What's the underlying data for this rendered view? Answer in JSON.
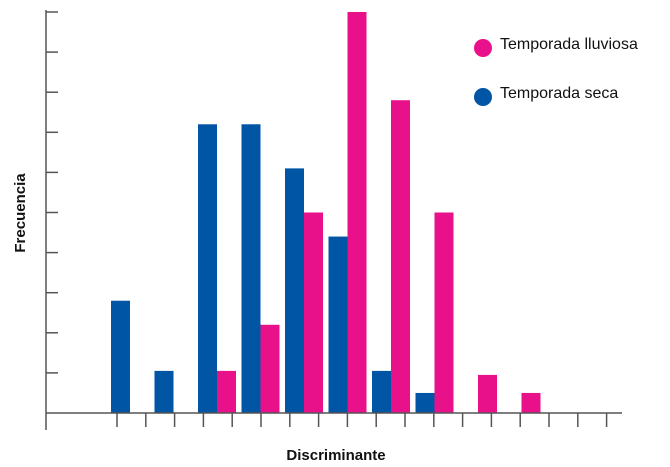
{
  "chart_data": {
    "type": "bar",
    "title": "",
    "xlabel": "Discriminante",
    "ylabel": "Frecuencia",
    "ylim": [
      0,
      10
    ],
    "grid": false,
    "legend_placement": "top-right",
    "series": [
      {
        "name": "Temporada seca",
        "color": "#0055a4",
        "values": [
          2.8,
          1.05,
          7.2,
          7.2,
          6.1,
          4.4,
          1.05,
          0.5,
          0,
          0
        ]
      },
      {
        "name": "Temporada lluviosa",
        "color": "#e8118a",
        "values": [
          0,
          0,
          1.05,
          2.2,
          5.0,
          10.0,
          7.8,
          5.0,
          0.95,
          0.5
        ]
      }
    ]
  }
}
